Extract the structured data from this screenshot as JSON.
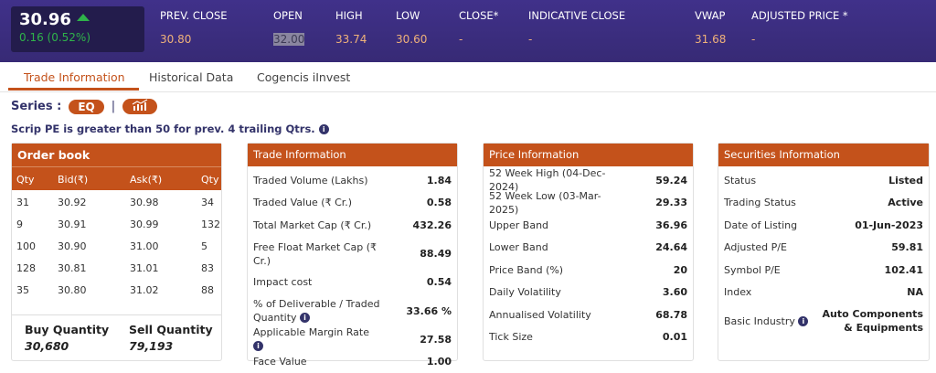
{
  "quote": {
    "price": "30.96",
    "change": "0.16 (0.52%)",
    "direction": "up",
    "stats": [
      {
        "label": "PREV. CLOSE",
        "value": "30.80"
      },
      {
        "label": "OPEN",
        "value": "32.00"
      },
      {
        "label": "HIGH",
        "value": "33.74"
      },
      {
        "label": "LOW",
        "value": "30.60"
      },
      {
        "label": "CLOSE*",
        "value": "-"
      },
      {
        "label": "INDICATIVE CLOSE",
        "value": "-"
      },
      {
        "label": "VWAP",
        "value": "31.68"
      },
      {
        "label": "ADJUSTED PRICE *",
        "value": "-"
      }
    ]
  },
  "tabs": [
    "Trade Information",
    "Historical Data",
    "Cogencis iInvest"
  ],
  "series": {
    "label": "Series :",
    "value": "EQ",
    "sep": "|"
  },
  "pe_note": "Scrip PE is greater than 50 for prev. 4 trailing Qtrs.",
  "order_book": {
    "title": "Order book",
    "headers": [
      "Qty",
      "Bid(₹)",
      "Ask(₹)",
      "Qty"
    ],
    "rows": [
      [
        "31",
        "30.92",
        "30.98",
        "34"
      ],
      [
        "9",
        "30.91",
        "30.99",
        "132"
      ],
      [
        "100",
        "30.90",
        "31.00",
        "5"
      ],
      [
        "128",
        "30.81",
        "31.01",
        "83"
      ],
      [
        "35",
        "30.80",
        "31.02",
        "88"
      ]
    ],
    "buy_label": "Buy Quantity",
    "buy_value": "30,680",
    "sell_label": "Sell Quantity",
    "sell_value": "79,193"
  },
  "trade_info": {
    "title": "Trade Information",
    "rows": [
      [
        "Traded Volume (Lakhs)",
        "1.84"
      ],
      [
        "Traded Value (₹ Cr.)",
        "0.58"
      ],
      [
        "Total Market Cap (₹ Cr.)",
        "432.26"
      ],
      [
        "Free Float Market Cap (₹ Cr.)",
        "88.49"
      ],
      [
        "Impact cost",
        "0.54"
      ],
      [
        "% of Deliverable / Traded Quantity",
        "33.66 %"
      ],
      [
        "Applicable Margin Rate",
        "27.58"
      ],
      [
        "Face Value",
        "1.00"
      ]
    ]
  },
  "price_info": {
    "title": "Price Information",
    "rows": [
      [
        "52 Week High (04-Dec-2024)",
        "59.24"
      ],
      [
        "52 Week Low (03-Mar-2025)",
        "29.33"
      ],
      [
        "Upper Band",
        "36.96"
      ],
      [
        "Lower Band",
        "24.64"
      ],
      [
        "Price Band (%)",
        "20"
      ],
      [
        "Daily Volatility",
        "3.60"
      ],
      [
        "Annualised Volatility",
        "68.78"
      ],
      [
        "Tick Size",
        "0.01"
      ]
    ]
  },
  "securities_info": {
    "title": "Securities Information",
    "rows": [
      [
        "Status",
        "Listed"
      ],
      [
        "Trading Status",
        "Active"
      ],
      [
        "Date of Listing",
        "01-Jun-2023"
      ],
      [
        "Adjusted P/E",
        "59.81"
      ],
      [
        "Symbol P/E",
        "102.41"
      ],
      [
        "Index",
        "NA"
      ],
      [
        "Basic Industry",
        "Auto Components & Equipments"
      ]
    ]
  },
  "colors": {
    "header": "#3b2d7a",
    "accent": "#c4521b",
    "up": "#2fb34a",
    "value": "#f0b27a"
  }
}
